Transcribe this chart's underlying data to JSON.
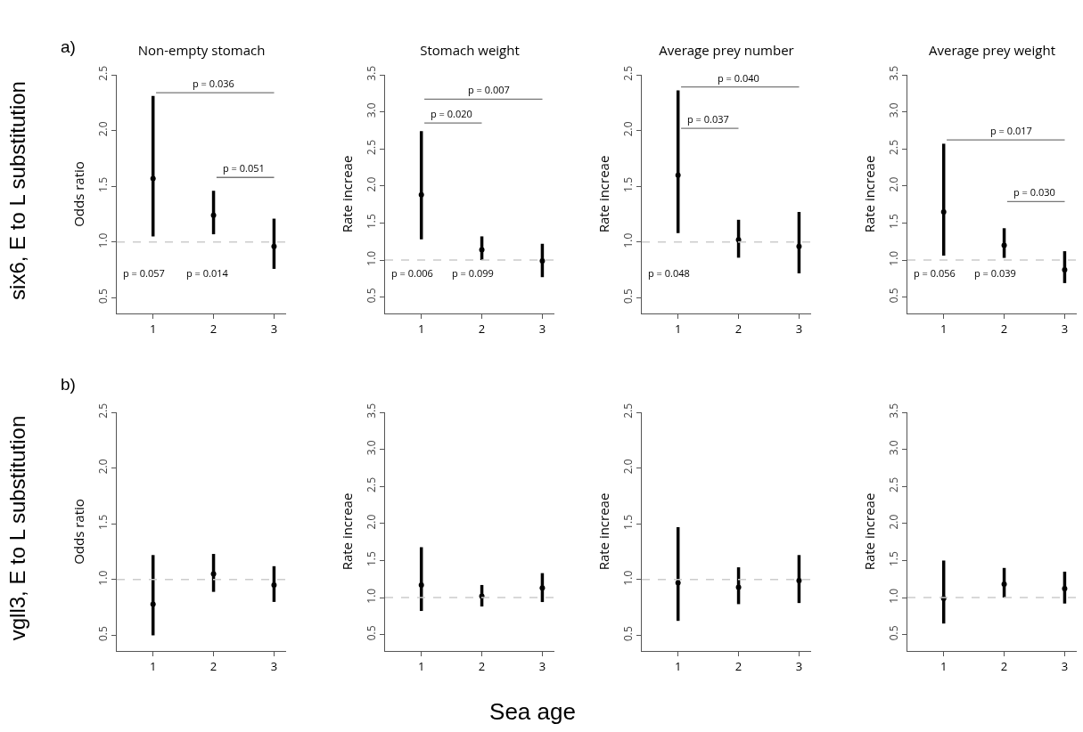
{
  "chart_data": [
    {
      "type": "scatter",
      "title": "Non-empty stomach",
      "ylabel": "Odds ratio",
      "x": [
        1,
        2,
        3
      ],
      "xlim": [
        0.4,
        3.2
      ],
      "xticks": [
        1,
        2,
        3
      ],
      "ylim": [
        0.36,
        2.5
      ],
      "yticks": [
        {
          "value": 0.5,
          "label": "0.5"
        },
        {
          "value": 1,
          "label": "1.0"
        },
        {
          "value": 1.5,
          "label": "1.5"
        },
        {
          "value": 2,
          "label": "2.0"
        },
        {
          "value": 2.5,
          "label": "2.5"
        }
      ],
      "color": "#000000",
      "marker": "circle",
      "values": [
        1.57,
        1.24,
        0.96
      ],
      "errors": [
        [
          1.05,
          2.31
        ],
        [
          1.07,
          1.46
        ],
        [
          0.76,
          1.21
        ]
      ],
      "ref_lines": [
        {
          "axis": "y",
          "value": 1,
          "color": "#cccccc",
          "line_style": "dashed"
        }
      ],
      "annotations": [
        "a)",
        "six6, E to L substitution",
        "p = 0.036",
        "p = 0.051",
        "p = 0.057",
        "p = 0.014"
      ]
    },
    {
      "type": "scatter",
      "title": "Stomach weight",
      "ylabel": "Rate increae",
      "x": [
        1,
        2,
        3
      ],
      "xlim": [
        0.4,
        3.2
      ],
      "xticks": [
        1,
        2,
        3
      ],
      "ylim": [
        0.28,
        3.5
      ],
      "yticks": [
        {
          "value": 0.5,
          "label": "0.5"
        },
        {
          "value": 1,
          "label": "1.0"
        },
        {
          "value": 1.5,
          "label": "1.5"
        },
        {
          "value": 2,
          "label": "2.0"
        },
        {
          "value": 2.5,
          "label": "2.5"
        },
        {
          "value": 3,
          "label": "3.0"
        },
        {
          "value": 3.5,
          "label": "3.5"
        }
      ],
      "color": "#000000",
      "marker": "circle",
      "values": [
        1.88,
        1.14,
        0.99
      ],
      "errors": [
        [
          1.28,
          2.74
        ],
        [
          1.0,
          1.32
        ],
        [
          0.77,
          1.22
        ]
      ],
      "ref_lines": [
        {
          "axis": "y",
          "value": 1,
          "color": "#cccccc",
          "line_style": "dashed"
        }
      ],
      "annotations": [
        "p = 0.007",
        "p = 0.020",
        "p = 0.006",
        "p = 0.099"
      ]
    },
    {
      "type": "scatter",
      "title": "Average prey number",
      "ylabel": "Rate increae",
      "x": [
        1,
        2,
        3
      ],
      "xlim": [
        0.4,
        3.2
      ],
      "xticks": [
        1,
        2,
        3
      ],
      "ylim": [
        0.36,
        2.5
      ],
      "yticks": [
        {
          "value": 0.5,
          "label": "0.5"
        },
        {
          "value": 1,
          "label": "1.0"
        },
        {
          "value": 1.5,
          "label": "1.5"
        },
        {
          "value": 2,
          "label": "2.0"
        },
        {
          "value": 2.5,
          "label": "2.5"
        }
      ],
      "color": "#000000",
      "marker": "circle",
      "values": [
        1.6,
        1.02,
        0.96
      ],
      "errors": [
        [
          1.08,
          2.36
        ],
        [
          0.86,
          1.2
        ],
        [
          0.72,
          1.27
        ]
      ],
      "ref_lines": [
        {
          "axis": "y",
          "value": 1,
          "color": "#cccccc",
          "line_style": "dashed"
        }
      ],
      "annotations": [
        "p = 0.040",
        "p = 0.037",
        "p = 0.048"
      ]
    },
    {
      "type": "scatter",
      "title": "Average prey weight",
      "ylabel": "Rate increae",
      "x": [
        1,
        2,
        3
      ],
      "xlim": [
        0.4,
        3.2
      ],
      "xticks": [
        1,
        2,
        3
      ],
      "ylim": [
        0.28,
        3.5
      ],
      "yticks": [
        {
          "value": 0.5,
          "label": "0.5"
        },
        {
          "value": 1,
          "label": "1.0"
        },
        {
          "value": 1.5,
          "label": "1.5"
        },
        {
          "value": 2,
          "label": "2.0"
        },
        {
          "value": 2.5,
          "label": "2.5"
        },
        {
          "value": 3,
          "label": "3.0"
        },
        {
          "value": 3.5,
          "label": "3.5"
        }
      ],
      "color": "#000000",
      "marker": "circle",
      "values": [
        1.65,
        1.2,
        0.87
      ],
      "errors": [
        [
          1.06,
          2.57
        ],
        [
          1.03,
          1.43
        ],
        [
          0.69,
          1.12
        ]
      ],
      "ref_lines": [
        {
          "axis": "y",
          "value": 1,
          "color": "#cccccc",
          "line_style": "dashed"
        }
      ],
      "annotations": [
        "p = 0.017",
        "p = 0.030",
        "p = 0.056",
        "p = 0.039"
      ]
    },
    {
      "type": "scatter",
      "ylabel": "Odds ratio",
      "x": [
        1,
        2,
        3
      ],
      "xlim": [
        0.4,
        3.2
      ],
      "xticks": [
        1,
        2,
        3
      ],
      "ylim": [
        0.36,
        2.5
      ],
      "yticks": [
        {
          "value": 0.5,
          "label": "0.5"
        },
        {
          "value": 1,
          "label": "1.0"
        },
        {
          "value": 1.5,
          "label": "1.5"
        },
        {
          "value": 2,
          "label": "2.0"
        },
        {
          "value": 2.5,
          "label": "2.5"
        }
      ],
      "color": "#000000",
      "marker": "circle",
      "values": [
        0.78,
        1.05,
        0.95
      ],
      "errors": [
        [
          0.5,
          1.22
        ],
        [
          0.89,
          1.23
        ],
        [
          0.8,
          1.12
        ]
      ],
      "ref_lines": [
        {
          "axis": "y",
          "value": 1,
          "color": "#cccccc",
          "line_style": "dashed"
        }
      ],
      "annotations": [
        "b)",
        "vgll3, E to L substitution"
      ]
    },
    {
      "type": "scatter",
      "ylabel": "Rate increae",
      "xlabel": "Sea age",
      "x": [
        1,
        2,
        3
      ],
      "xlim": [
        0.4,
        3.2
      ],
      "xticks": [
        1,
        2,
        3
      ],
      "ylim": [
        0.28,
        3.5
      ],
      "yticks": [
        {
          "value": 0.5,
          "label": "0.5"
        },
        {
          "value": 1,
          "label": "1.0"
        },
        {
          "value": 1.5,
          "label": "1.5"
        },
        {
          "value": 2,
          "label": "2.0"
        },
        {
          "value": 2.5,
          "label": "2.5"
        },
        {
          "value": 3,
          "label": "3.0"
        },
        {
          "value": 3.5,
          "label": "3.5"
        }
      ],
      "color": "#000000",
      "marker": "circle",
      "values": [
        1.17,
        1.02,
        1.13
      ],
      "errors": [
        [
          0.82,
          1.68
        ],
        [
          0.88,
          1.17
        ],
        [
          0.94,
          1.33
        ]
      ],
      "ref_lines": [
        {
          "axis": "y",
          "value": 1,
          "color": "#cccccc",
          "line_style": "dashed"
        }
      ]
    },
    {
      "type": "scatter",
      "ylabel": "Rate increae",
      "x": [
        1,
        2,
        3
      ],
      "xlim": [
        0.4,
        3.2
      ],
      "xticks": [
        1,
        2,
        3
      ],
      "ylim": [
        0.36,
        2.5
      ],
      "yticks": [
        {
          "value": 0.5,
          "label": "0.5"
        },
        {
          "value": 1,
          "label": "1.0"
        },
        {
          "value": 1.5,
          "label": "1.5"
        },
        {
          "value": 2,
          "label": "2.0"
        },
        {
          "value": 2.5,
          "label": "2.5"
        }
      ],
      "color": "#000000",
      "marker": "circle",
      "values": [
        0.97,
        0.93,
        0.99
      ],
      "errors": [
        [
          0.63,
          1.47
        ],
        [
          0.78,
          1.11
        ],
        [
          0.79,
          1.22
        ]
      ],
      "ref_lines": [
        {
          "axis": "y",
          "value": 1,
          "color": "#cccccc",
          "line_style": "dashed"
        }
      ]
    },
    {
      "type": "scatter",
      "ylabel": "Rate increae",
      "x": [
        1,
        2,
        3
      ],
      "xlim": [
        0.4,
        3.2
      ],
      "xticks": [
        1,
        2,
        3
      ],
      "ylim": [
        0.28,
        3.5
      ],
      "yticks": [
        {
          "value": 0.5,
          "label": "0.5"
        },
        {
          "value": 1,
          "label": "1.0"
        },
        {
          "value": 1.5,
          "label": "1.5"
        },
        {
          "value": 2,
          "label": "2.0"
        },
        {
          "value": 2.5,
          "label": "2.5"
        },
        {
          "value": 3,
          "label": "3.0"
        },
        {
          "value": 3.5,
          "label": "3.5"
        }
      ],
      "color": "#000000",
      "marker": "circle",
      "values": [
        0.99,
        1.18,
        1.12
      ],
      "errors": [
        [
          0.65,
          1.5
        ],
        [
          1.0,
          1.4
        ],
        [
          0.92,
          1.35
        ]
      ],
      "ref_lines": [
        {
          "axis": "y",
          "value": 1,
          "color": "#cccccc",
          "line_style": "dashed"
        }
      ]
    }
  ]
}
